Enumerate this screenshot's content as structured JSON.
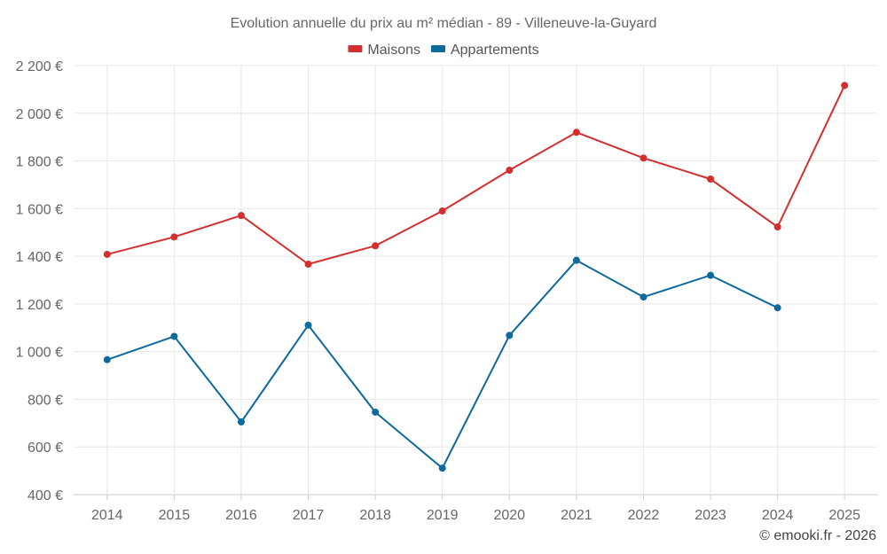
{
  "chart_data": {
    "type": "line",
    "title": "Evolution annuelle du prix au m² médian - 89 - Villeneuve-la-Guyard",
    "categories": [
      "2014",
      "2015",
      "2016",
      "2017",
      "2018",
      "2019",
      "2020",
      "2021",
      "2022",
      "2023",
      "2024",
      "2025"
    ],
    "series": [
      {
        "name": "Maisons",
        "color": "#d32f2f",
        "values": [
          1408,
          1481,
          1571,
          1367,
          1444,
          1590,
          1761,
          1920,
          1812,
          1724,
          1523,
          2117
        ]
      },
      {
        "name": "Appartements",
        "color": "#0d6a9c",
        "values": [
          966,
          1064,
          705,
          1111,
          746,
          511,
          1068,
          1383,
          1229,
          1320,
          1184,
          null
        ]
      }
    ],
    "ylim": [
      400,
      2200
    ],
    "yticks": [
      400,
      600,
      800,
      1000,
      1200,
      1400,
      1600,
      1800,
      2000,
      2200
    ],
    "ytick_labels": [
      "400 €",
      "600 €",
      "800 €",
      "1 000 €",
      "1 200 €",
      "1 400 €",
      "1 600 €",
      "1 800 €",
      "2 000 €",
      "2 200 €"
    ],
    "xlabel": "",
    "ylabel": "",
    "grid": true,
    "legend_position": "top-center"
  },
  "credit": "© emooki.fr - 2026"
}
